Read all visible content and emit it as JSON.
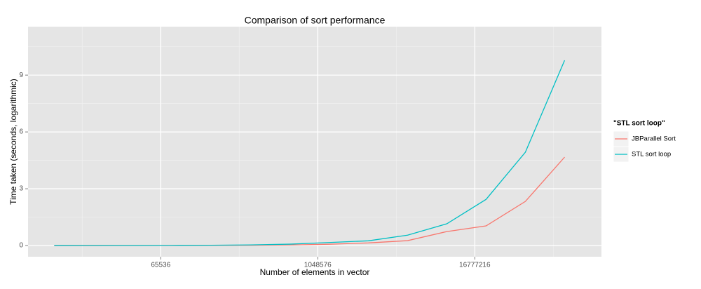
{
  "chart_data": {
    "type": "line",
    "title": "Comparison of sort performance",
    "x_label": "Number  of elements in vector",
    "y_label": "Time taken (seconds, logarithmic)",
    "x": [
      10000,
      20000,
      40000,
      80000,
      160000,
      320000,
      640000,
      1280000,
      2560000,
      5120000,
      10240000,
      20480000,
      40960000,
      81920000
    ],
    "series": [
      {
        "name": "JBParallel Sort",
        "color": "#F8766D",
        "values": [
          0.001,
          0.001,
          0.002,
          0.004,
          0.008,
          0.015,
          0.03,
          0.07,
          0.14,
          0.26,
          0.74,
          1.04,
          2.33,
          4.67
        ]
      },
      {
        "name": "STL sort loop",
        "color": "#00BFC4",
        "values": [
          0.001,
          0.002,
          0.004,
          0.008,
          0.017,
          0.035,
          0.075,
          0.16,
          0.25,
          0.55,
          1.15,
          2.44,
          4.93,
          9.78
        ]
      }
    ],
    "legend_title": "\"STL sort loop\"",
    "xscale": "log",
    "xbase": 2,
    "xlim": [
      6300,
      157000000
    ],
    "xticks": [
      65536,
      1048576,
      16777216
    ],
    "ylim": [
      -0.59,
      11.56
    ],
    "yticks": [
      0,
      3,
      6,
      9
    ],
    "grid": true,
    "legend_position": "right"
  }
}
